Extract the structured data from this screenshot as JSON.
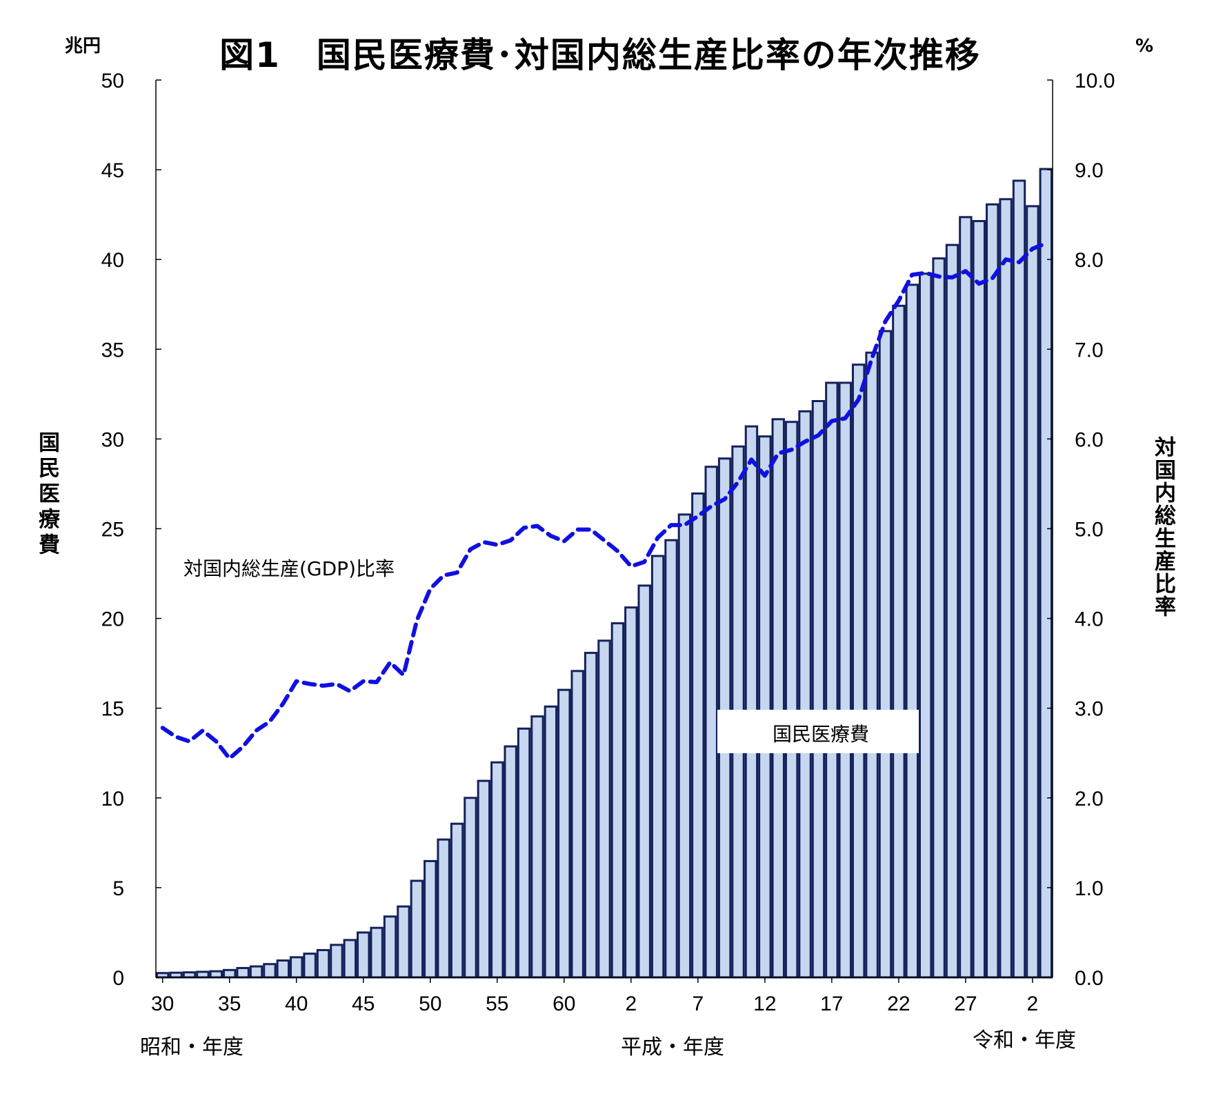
{
  "title": "図1　国民医療費･対国内総生産比率の年次推移",
  "left_axis": {
    "unit": "兆円",
    "label": "国民医療費",
    "ticks": [
      "0",
      "5",
      "10",
      "15",
      "20",
      "25",
      "30",
      "35",
      "40",
      "45",
      "50"
    ]
  },
  "right_axis": {
    "unit": "%",
    "label": "対国内総生産比率",
    "ticks": [
      "0.0",
      "1.0",
      "2.0",
      "3.0",
      "4.0",
      "5.0",
      "6.0",
      "7.0",
      "8.0",
      "9.0",
      "10.0"
    ]
  },
  "x_ticks": [
    {
      "label": "30",
      "index": 0
    },
    {
      "label": "35",
      "index": 5
    },
    {
      "label": "40",
      "index": 10
    },
    {
      "label": "45",
      "index": 15
    },
    {
      "label": "50",
      "index": 20
    },
    {
      "label": "55",
      "index": 25
    },
    {
      "label": "60",
      "index": 30
    },
    {
      "label": "2",
      "index": 35
    },
    {
      "label": "7",
      "index": 40
    },
    {
      "label": "12",
      "index": 45
    },
    {
      "label": "17",
      "index": 50
    },
    {
      "label": "22",
      "index": 55
    },
    {
      "label": "27",
      "index": 60
    },
    {
      "label": "2",
      "index": 65
    }
  ],
  "era_labels": {
    "showa": "昭和・年度",
    "heisei": "平成・年度",
    "reiwa": "令和・年度"
  },
  "annotations": {
    "gdp": "対国内総生産(GDP)比率",
    "nme": "国民医療費"
  },
  "colors": {
    "bar_fill": "#c6d7ef",
    "bar_stroke": "#14215a",
    "line": "#1010e0"
  },
  "chart_data": {
    "type": "bar",
    "x": [
      "昭和30",
      "昭和31",
      "昭和32",
      "昭和33",
      "昭和34",
      "昭和35",
      "昭和36",
      "昭和37",
      "昭和38",
      "昭和39",
      "昭和40",
      "昭和41",
      "昭和42",
      "昭和43",
      "昭和44",
      "昭和45",
      "昭和46",
      "昭和47",
      "昭和48",
      "昭和49",
      "昭和50",
      "昭和51",
      "昭和52",
      "昭和53",
      "昭和54",
      "昭和55",
      "昭和56",
      "昭和57",
      "昭和58",
      "昭和59",
      "昭和60",
      "昭和61",
      "昭和62",
      "昭和63",
      "平成元",
      "平成2",
      "平成3",
      "平成4",
      "平成5",
      "平成6",
      "平成7",
      "平成8",
      "平成9",
      "平成10",
      "平成11",
      "平成12",
      "平成13",
      "平成14",
      "平成15",
      "平成16",
      "平成17",
      "平成18",
      "平成19",
      "平成20",
      "平成21",
      "平成22",
      "平成23",
      "平成24",
      "平成25",
      "平成26",
      "平成27",
      "平成28",
      "平成29",
      "平成30",
      "令和元",
      "令和2",
      "令和3"
    ],
    "series": [
      {
        "name": "国民医療費",
        "axis": "left",
        "type": "bar",
        "values": [
          0.24,
          0.26,
          0.28,
          0.31,
          0.34,
          0.41,
          0.52,
          0.61,
          0.74,
          0.94,
          1.12,
          1.32,
          1.52,
          1.81,
          2.08,
          2.5,
          2.76,
          3.39,
          3.95,
          5.38,
          6.48,
          7.68,
          8.56,
          10.0,
          10.95,
          11.98,
          12.87,
          13.86,
          14.54,
          15.09,
          16.02,
          17.07,
          18.08,
          18.76,
          19.73,
          20.61,
          21.83,
          23.48,
          24.36,
          25.79,
          26.96,
          28.45,
          28.91,
          29.58,
          30.7,
          30.14,
          31.1,
          30.95,
          31.54,
          32.11,
          33.13,
          33.13,
          34.14,
          34.81,
          36.01,
          37.42,
          38.59,
          39.21,
          40.06,
          40.81,
          42.36,
          42.14,
          43.07,
          43.36,
          44.39,
          42.97,
          45.04
        ]
      },
      {
        "name": "対国内総生産(GDP)比率",
        "axis": "right",
        "type": "line",
        "values": [
          2.78,
          2.68,
          2.63,
          2.75,
          2.63,
          2.44,
          2.57,
          2.75,
          2.85,
          3.05,
          3.3,
          3.27,
          3.25,
          3.27,
          3.19,
          3.3,
          3.29,
          3.51,
          3.37,
          3.98,
          4.33,
          4.48,
          4.51,
          4.77,
          4.85,
          4.82,
          4.87,
          5.01,
          5.03,
          4.92,
          4.86,
          4.99,
          4.99,
          4.87,
          4.75,
          4.58,
          4.63,
          4.9,
          5.04,
          5.04,
          5.14,
          5.25,
          5.33,
          5.52,
          5.77,
          5.59,
          5.84,
          5.88,
          5.97,
          6.04,
          6.2,
          6.23,
          6.44,
          6.9,
          7.31,
          7.54,
          7.83,
          7.85,
          7.81,
          7.8,
          7.87,
          7.73,
          7.79,
          8.0,
          7.97,
          8.12,
          8.18
        ]
      }
    ],
    "ylim_left": [
      0,
      50
    ],
    "ylim_right": [
      0,
      10
    ],
    "xlabel": "",
    "legend": "none"
  }
}
